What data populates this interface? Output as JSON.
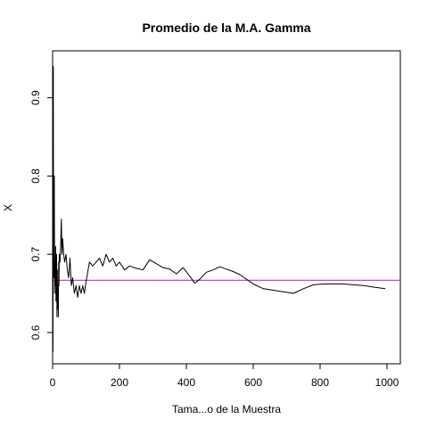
{
  "chart_data": {
    "type": "line",
    "title": "Promedio de la M.A. Gamma",
    "xlabel": "Tama...o de la Muestra",
    "ylabel": "X",
    "xlim": [
      0,
      1040
    ],
    "ylim": [
      0.56,
      0.96
    ],
    "x_ticks": [
      0,
      200,
      400,
      600,
      800,
      1000
    ],
    "y_ticks": [
      0.6,
      0.7,
      0.8,
      0.9
    ],
    "x_tick_labels": [
      "0",
      "200",
      "400",
      "600",
      "800",
      "1000"
    ],
    "y_tick_labels": [
      "0.6",
      "0.7",
      "0.8",
      "0.9"
    ],
    "grid": false,
    "reference_line": {
      "y": 0.6667,
      "color": "#cc44cc"
    },
    "series": [
      {
        "color": "#000000",
        "x": [
          1,
          2,
          3,
          4,
          5,
          6,
          7,
          8,
          9,
          10,
          11,
          12,
          13,
          14,
          15,
          16,
          17,
          18,
          19,
          20,
          22,
          24,
          26,
          28,
          30,
          33,
          36,
          40,
          44,
          48,
          52,
          56,
          60,
          65,
          70,
          75,
          80,
          85,
          90,
          95,
          100,
          110,
          120,
          130,
          140,
          150,
          160,
          170,
          180,
          190,
          200,
          215,
          230,
          250,
          270,
          290,
          310,
          330,
          350,
          370,
          390,
          410,
          425,
          440,
          460,
          480,
          500,
          520,
          540,
          560,
          580,
          600,
          630,
          660,
          690,
          720,
          750,
          780,
          810,
          840,
          870,
          900,
          930,
          960,
          995
        ],
        "y": [
          0.575,
          0.94,
          0.67,
          0.7,
          0.8,
          0.65,
          0.68,
          0.66,
          0.71,
          0.64,
          0.65,
          0.7,
          0.62,
          0.68,
          0.63,
          0.66,
          0.62,
          0.69,
          0.66,
          0.7,
          0.69,
          0.71,
          0.745,
          0.7,
          0.72,
          0.7,
          0.69,
          0.7,
          0.68,
          0.67,
          0.695,
          0.66,
          0.67,
          0.65,
          0.66,
          0.645,
          0.66,
          0.65,
          0.66,
          0.65,
          0.665,
          0.69,
          0.685,
          0.69,
          0.695,
          0.685,
          0.7,
          0.69,
          0.695,
          0.685,
          0.69,
          0.68,
          0.685,
          0.682,
          0.68,
          0.693,
          0.688,
          0.683,
          0.681,
          0.675,
          0.683,
          0.672,
          0.663,
          0.668,
          0.677,
          0.68,
          0.684,
          0.681,
          0.678,
          0.674,
          0.668,
          0.662,
          0.656,
          0.654,
          0.652,
          0.65,
          0.656,
          0.661,
          0.662,
          0.662,
          0.662,
          0.661,
          0.66,
          0.658,
          0.656
        ]
      }
    ]
  }
}
